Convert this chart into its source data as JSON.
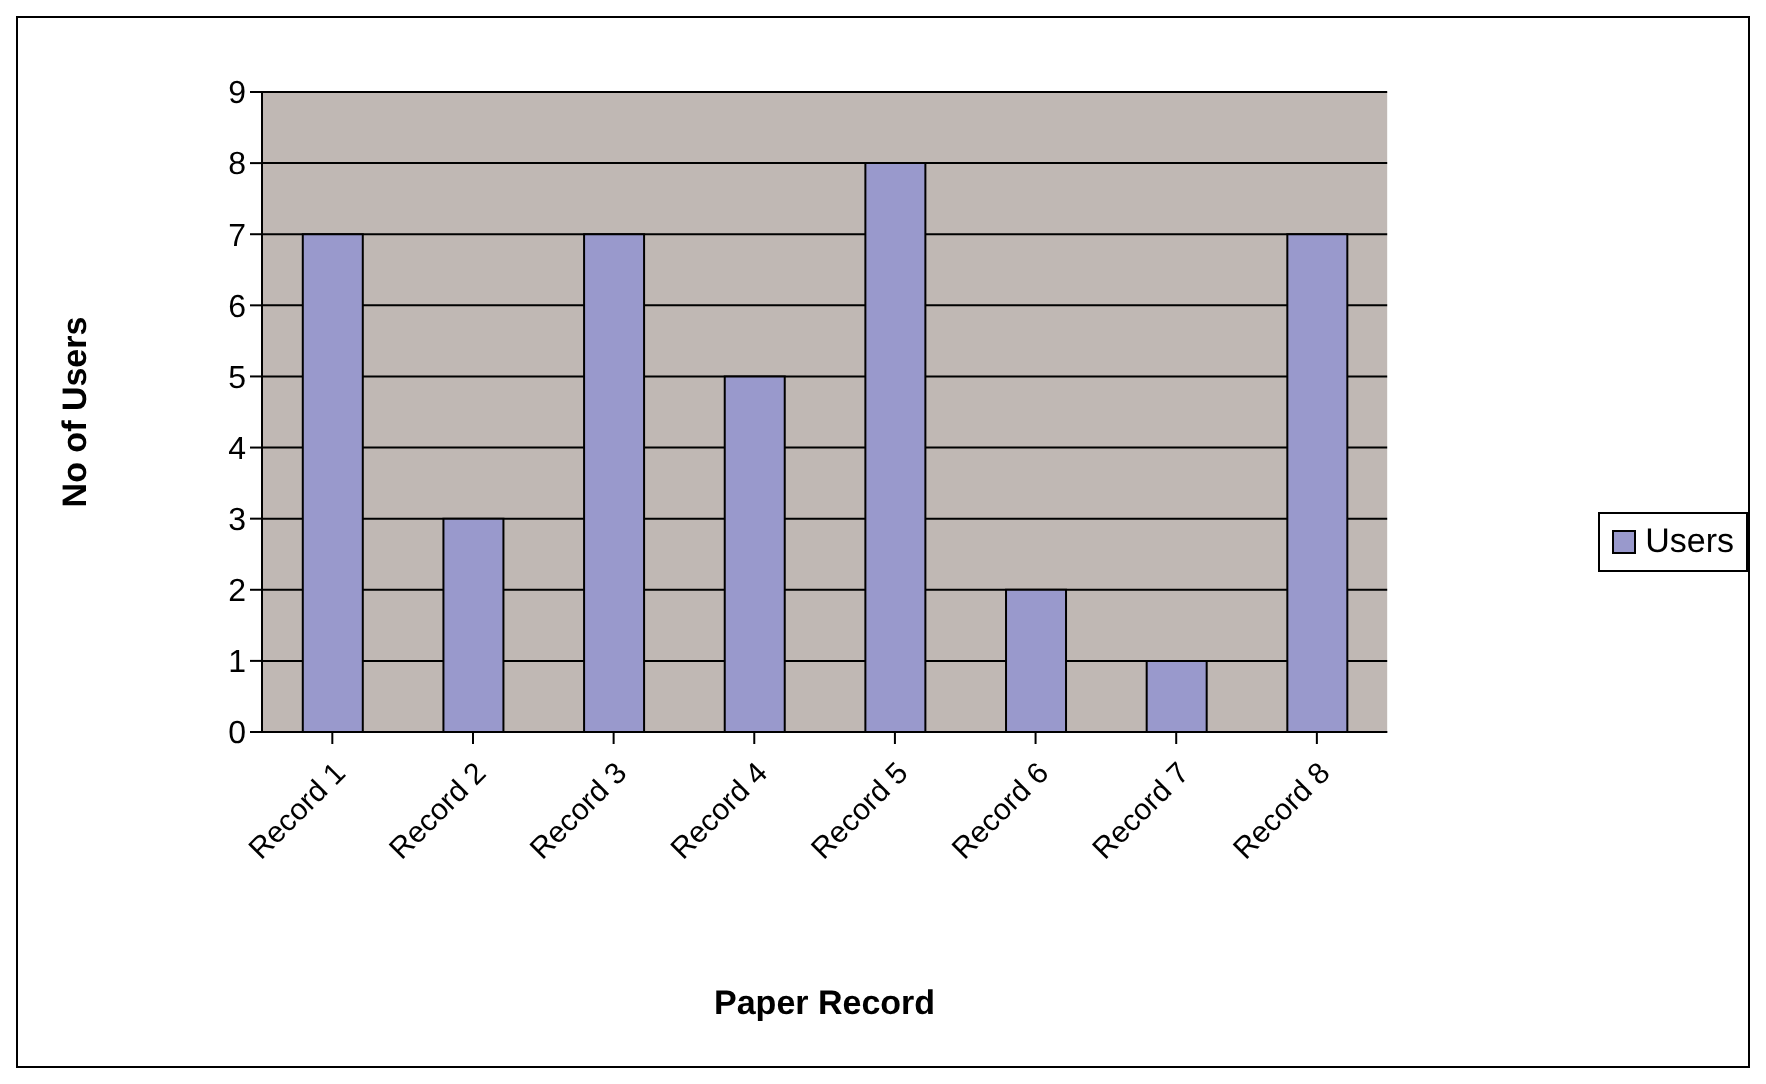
{
  "chart_data": {
    "type": "bar",
    "xlabel": "Paper Record",
    "ylabel": "No of Users",
    "categories": [
      "Record 1",
      "Record 2",
      "Record 3",
      "Record 4",
      "Record 5",
      "Record 6",
      "Record 7",
      "Record 8"
    ],
    "series": [
      {
        "name": "Users",
        "color": "#9999cc",
        "values": [
          7,
          3,
          7,
          5,
          8,
          2,
          1,
          7
        ]
      }
    ],
    "ylim": [
      0,
      9
    ],
    "yticks": [
      0,
      1,
      2,
      3,
      4,
      5,
      6,
      7,
      8,
      9
    ],
    "grid": "y",
    "legend": "right"
  }
}
